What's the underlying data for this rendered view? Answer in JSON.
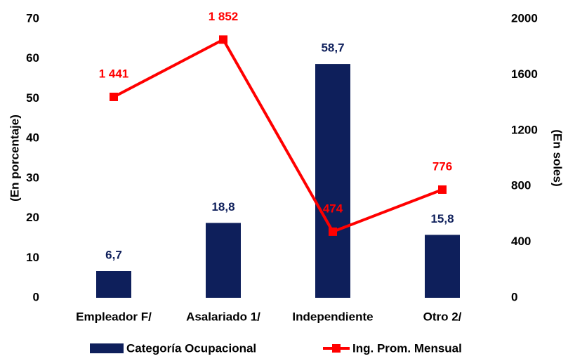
{
  "chart_data": {
    "type": "combo",
    "categories": [
      "Empleador F/",
      "Asalariado 1/",
      "Independiente",
      "Otro 2/"
    ],
    "series": [
      {
        "name": "Categoría Ocupacional",
        "type": "bar",
        "color": "#0e1f5b",
        "values": [
          6.7,
          18.8,
          58.7,
          15.8
        ],
        "value_labels": [
          "6,7",
          "18,8",
          "58,7",
          "15,8"
        ]
      },
      {
        "name": "Ing. Prom. Mensual",
        "type": "line",
        "axis": "y2",
        "color": "#ff0000",
        "values": [
          1441,
          1852,
          474,
          776
        ],
        "value_labels": [
          "1 441",
          "1 852",
          "474",
          "776"
        ]
      }
    ],
    "ylabel": "(En porcentaje)",
    "y2label": "(En soles)",
    "ylim": [
      0,
      70
    ],
    "yticks": [
      0,
      10,
      20,
      30,
      40,
      50,
      60,
      70
    ],
    "y2lim": [
      0,
      2000
    ],
    "y2ticks": [
      0,
      400,
      800,
      1200,
      1600,
      2000
    ],
    "legend": "bottom"
  }
}
